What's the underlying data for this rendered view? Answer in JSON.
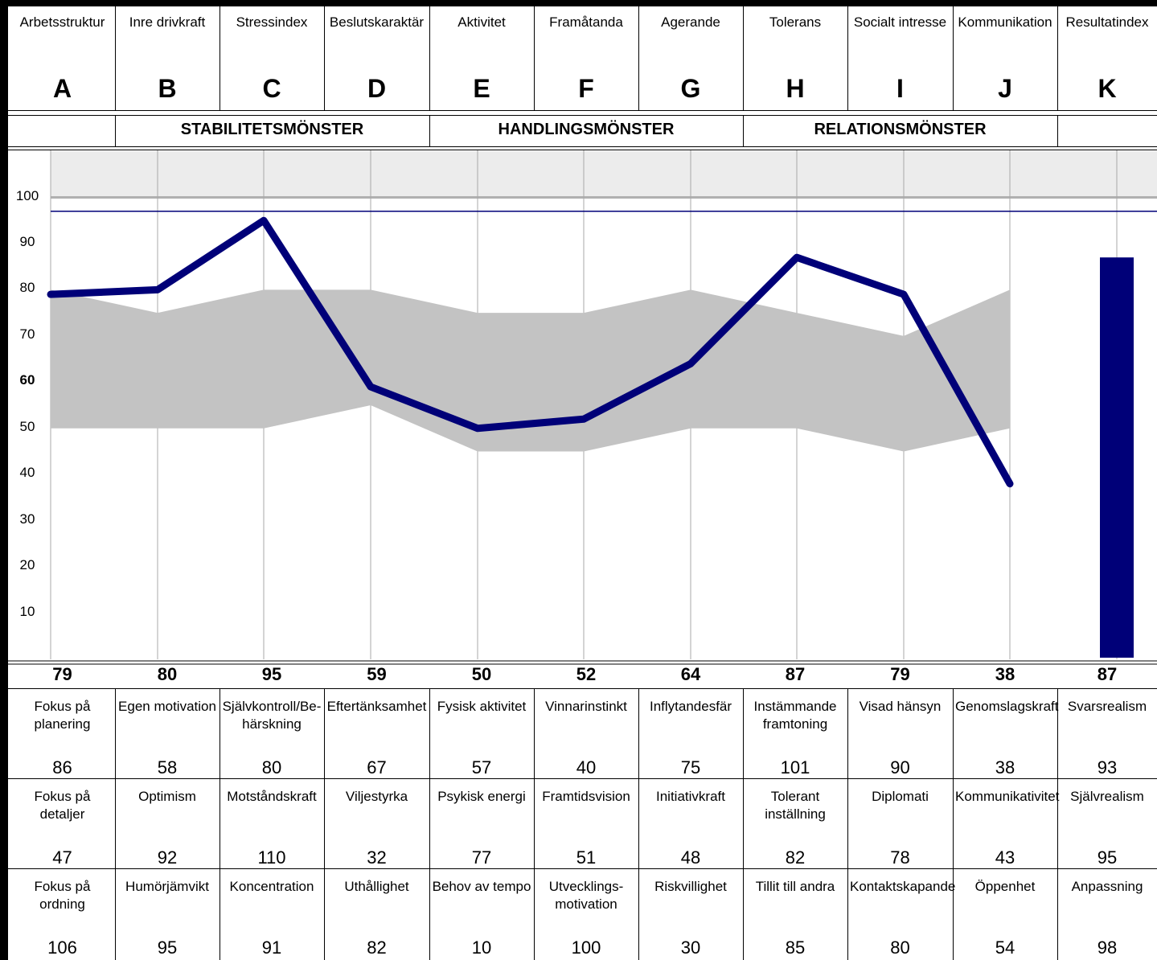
{
  "columns": [
    {
      "name": "Arbetsstruktur",
      "letter": "A"
    },
    {
      "name": "Inre drivkraft",
      "letter": "B"
    },
    {
      "name": "Stressindex",
      "letter": "C"
    },
    {
      "name": "Beslutskaraktär",
      "letter": "D"
    },
    {
      "name": "Aktivitet",
      "letter": "E"
    },
    {
      "name": "Framåtanda",
      "letter": "F"
    },
    {
      "name": "Agerande",
      "letter": "G"
    },
    {
      "name": "Tolerans",
      "letter": "H"
    },
    {
      "name": "Socialt intresse",
      "letter": "I"
    },
    {
      "name": "Kommunikation",
      "letter": "J"
    },
    {
      "name": "Resultatindex",
      "letter": "K"
    }
  ],
  "patterns": [
    "STABILITETSMÖNSTER",
    "HANDLINGSMÖNSTER",
    "RELATIONSMÖNSTER"
  ],
  "metrics": [
    [
      {
        "label": "Fokus på planering",
        "value": "86"
      },
      {
        "label": "Egen motivation",
        "value": "58"
      },
      {
        "label": "Självkontroll/Be-härskning",
        "value": "80"
      },
      {
        "label": "Eftertänksamhet",
        "value": "67"
      },
      {
        "label": "Fysisk aktivitet",
        "value": "57"
      },
      {
        "label": "Vinnarinstinkt",
        "value": "40"
      },
      {
        "label": "Inflytandesfär",
        "value": "75"
      },
      {
        "label": "Instämmande framtoning",
        "value": "101"
      },
      {
        "label": "Visad hänsyn",
        "value": "90"
      },
      {
        "label": "Genomslagskraft",
        "value": "38"
      },
      {
        "label": "Svarsrealism",
        "value": "93"
      }
    ],
    [
      {
        "label": "Fokus på detaljer",
        "value": "47"
      },
      {
        "label": "Optimism",
        "value": "92"
      },
      {
        "label": "Motståndskraft",
        "value": "110"
      },
      {
        "label": "Viljestyrka",
        "value": "32"
      },
      {
        "label": "Psykisk energi",
        "value": "77"
      },
      {
        "label": "Framtidsvision",
        "value": "51"
      },
      {
        "label": "Initiativkraft",
        "value": "48"
      },
      {
        "label": "Tolerant inställning",
        "value": "82"
      },
      {
        "label": "Diplomati",
        "value": "78"
      },
      {
        "label": "Kommunikativitet",
        "value": "43"
      },
      {
        "label": "Självrealism",
        "value": "95"
      }
    ],
    [
      {
        "label": "Fokus på ordning",
        "value": "106"
      },
      {
        "label": "Humörjämvikt",
        "value": "95"
      },
      {
        "label": "Koncentration",
        "value": "91"
      },
      {
        "label": "Uthållighet",
        "value": "82"
      },
      {
        "label": "Behov av tempo",
        "value": "10"
      },
      {
        "label": "Utvecklings-motivation",
        "value": "100"
      },
      {
        "label": "Riskvillighet",
        "value": "30"
      },
      {
        "label": "Tillit till andra",
        "value": "85"
      },
      {
        "label": "Kontaktskapande",
        "value": "80"
      },
      {
        "label": "Öppenhet",
        "value": "54"
      },
      {
        "label": "Anpassning",
        "value": "98"
      }
    ]
  ],
  "chart_data": {
    "type": "line",
    "categories": [
      "A",
      "B",
      "C",
      "D",
      "E",
      "F",
      "G",
      "H",
      "I",
      "J"
    ],
    "yticks": [
      "100",
      "90",
      "80",
      "70",
      "60",
      "50",
      "40",
      "30",
      "20",
      "10"
    ],
    "ylim": [
      0,
      110
    ],
    "series": [
      {
        "values": [
          79,
          80,
          95,
          59,
          50,
          52,
          64,
          87,
          79,
          38
        ]
      }
    ],
    "band_low": [
      50,
      50,
      50,
      55,
      45,
      45,
      50,
      50,
      45,
      50
    ],
    "band_high": [
      80,
      75,
      80,
      80,
      75,
      75,
      80,
      75,
      70,
      80
    ],
    "value_labels": [
      "79",
      "80",
      "95",
      "59",
      "50",
      "52",
      "64",
      "87",
      "79",
      "38",
      "87"
    ],
    "bar": {
      "category": "K",
      "value": 87
    },
    "reference_line": 97,
    "shaded_zone": [
      100,
      110
    ],
    "colors": {
      "line": "#000078",
      "band": "#c3c3c3",
      "zone": "#ececec",
      "bar": "#000078"
    }
  }
}
